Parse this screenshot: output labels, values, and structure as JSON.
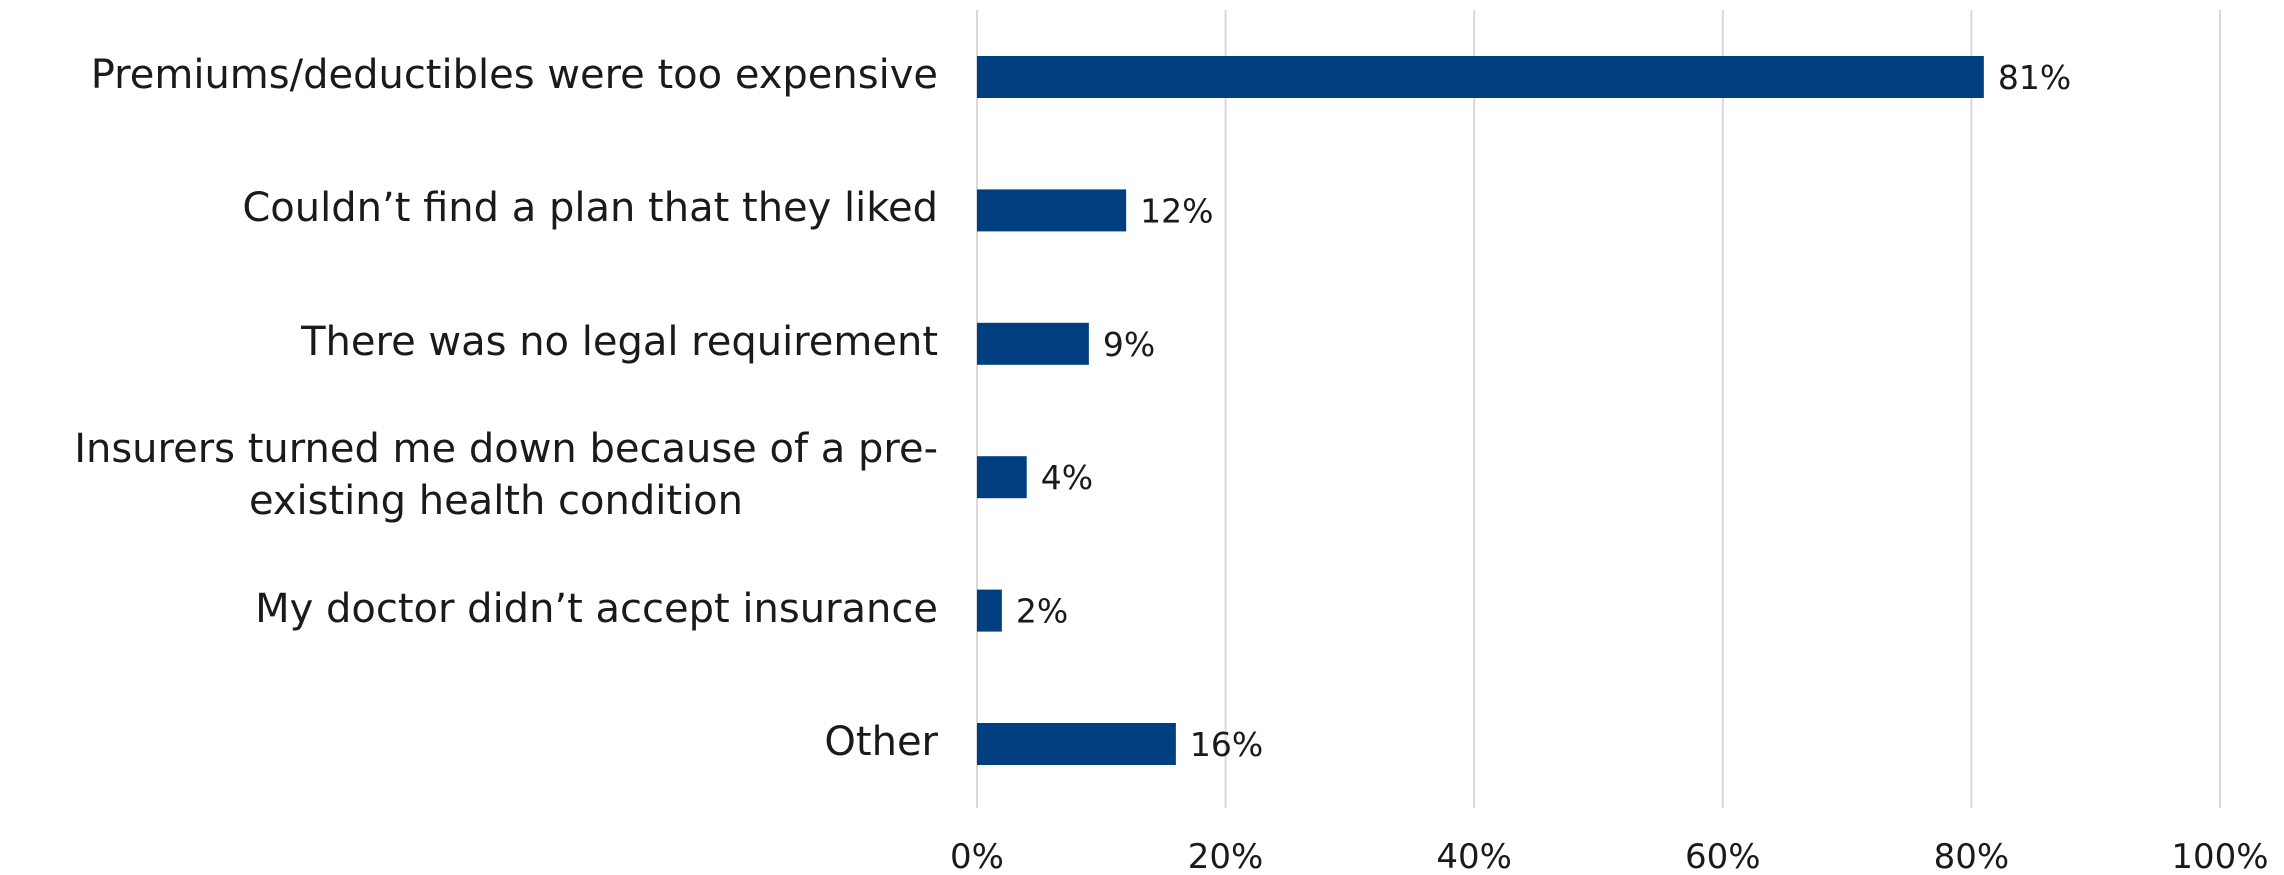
{
  "chart_data": {
    "type": "bar",
    "orientation": "horizontal",
    "categories": [
      "Premiums/deductibles were too expensive",
      "Couldn’t find a plan that they liked",
      "There was no legal requirement",
      "Insurers turned me down because of a pre-existing health condition",
      "My doctor didn’t accept insurance",
      "Other"
    ],
    "category_lines": [
      [
        "Premiums/deductibles were too expensive"
      ],
      [
        "Couldn’t find a plan that they liked"
      ],
      [
        "There was no legal requirement"
      ],
      [
        "Insurers turned me down because of a pre-",
        "existing health condition"
      ],
      [
        "My doctor didn’t accept insurance"
      ],
      [
        "Other"
      ]
    ],
    "values": [
      81,
      12,
      9,
      4,
      2,
      16
    ],
    "data_labels": [
      "81%",
      "12%",
      "9%",
      "4%",
      "2%",
      "16%"
    ],
    "xlim": [
      0,
      100
    ],
    "x_ticks": [
      0,
      20,
      40,
      60,
      80,
      100
    ],
    "x_tick_labels": [
      "0%",
      "20%",
      "40%",
      "60%",
      "80%",
      "100%"
    ],
    "grid": true,
    "bar_color": "#003f7f",
    "grid_color": "#d9d9d9",
    "title": "",
    "xlabel": "",
    "ylabel": ""
  }
}
